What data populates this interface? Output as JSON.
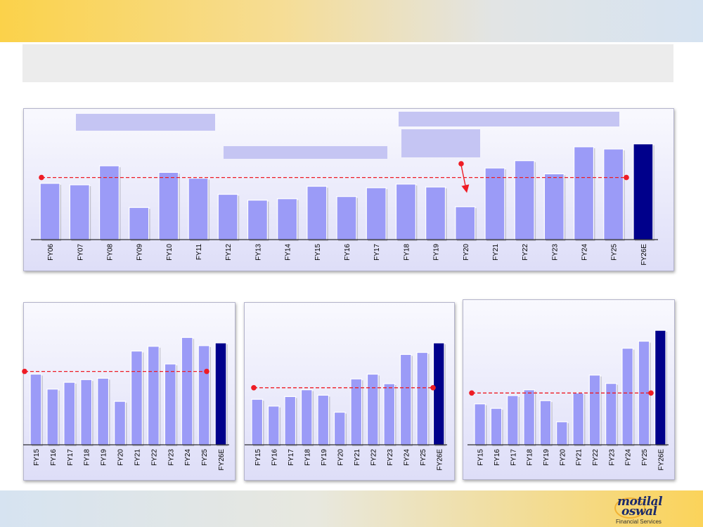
{
  "logo": {
    "line1": "motilal",
    "line2": "oswal",
    "line3": "Financial Services",
    "color": "#1b2a6b",
    "ring_color": "#f2b233"
  },
  "colors": {
    "bar": "#9b9bf7",
    "bar_highlight": "#00008b",
    "average_line": "#ee1c25",
    "arrow": "#ee1c25"
  },
  "chart_data": [
    {
      "type": "bar",
      "categories": [
        "FY06",
        "FY07",
        "FY08",
        "FY09",
        "FY10",
        "FY11",
        "FY12",
        "FY13",
        "FY14",
        "FY15",
        "FY16",
        "FY17",
        "FY18",
        "FY19",
        "FY20",
        "FY21",
        "FY22",
        "FY23",
        "FY24",
        "FY25",
        "FY26E"
      ],
      "values": [
        77,
        75,
        101,
        44,
        92,
        84,
        62,
        54,
        56,
        73,
        59,
        71,
        76,
        72,
        45,
        98,
        108,
        90,
        127,
        124,
        131
      ],
      "ylim": [
        0,
        150
      ],
      "reference_line": 85,
      "highlight_last": true,
      "annotation_arrow": true,
      "grid": false
    },
    {
      "type": "bar",
      "categories": [
        "FY15",
        "FY16",
        "FY17",
        "FY18",
        "FY19",
        "FY20",
        "FY21",
        "FY22",
        "FY23",
        "FY24",
        "FY25",
        "FY26E"
      ],
      "values": [
        104,
        82,
        92,
        96,
        98,
        64,
        138,
        145,
        119,
        158,
        146,
        150
      ],
      "ylim": [
        0,
        180
      ],
      "reference_line": 108,
      "highlight_last": true,
      "grid": false
    },
    {
      "type": "bar",
      "categories": [
        "FY15",
        "FY16",
        "FY17",
        "FY18",
        "FY19",
        "FY20",
        "FY21",
        "FY22",
        "FY23",
        "FY24",
        "FY25",
        "FY26E"
      ],
      "values": [
        67,
        57,
        71,
        81,
        73,
        48,
        97,
        104,
        90,
        133,
        136,
        150
      ],
      "ylim": [
        0,
        180
      ],
      "reference_line": 84,
      "highlight_last": true,
      "grid": false
    },
    {
      "type": "bar",
      "categories": [
        "FY15",
        "FY16",
        "FY17",
        "FY18",
        "FY19",
        "FY20",
        "FY21",
        "FY22",
        "FY23",
        "FY24",
        "FY25",
        "FY26E"
      ],
      "values": [
        64,
        57,
        77,
        86,
        69,
        36,
        81,
        109,
        96,
        151,
        162,
        179
      ],
      "ylim": [
        0,
        200
      ],
      "reference_line": 81,
      "highlight_last": true,
      "grid": false
    }
  ]
}
